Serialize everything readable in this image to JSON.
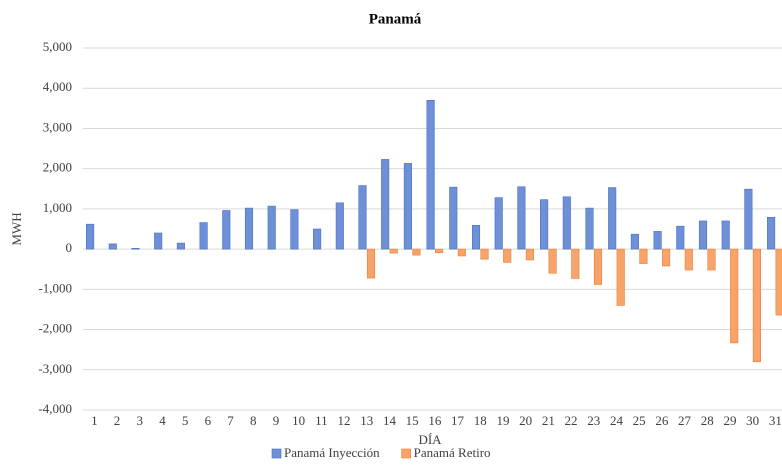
{
  "chart_data": {
    "type": "bar",
    "title": "Panamá",
    "x_label": "DÍA",
    "y_label": "MWH",
    "categories": [
      "1",
      "2",
      "3",
      "4",
      "5",
      "6",
      "7",
      "8",
      "9",
      "10",
      "11",
      "12",
      "13",
      "14",
      "15",
      "16",
      "17",
      "18",
      "19",
      "20",
      "21",
      "22",
      "23",
      "24",
      "25",
      "26",
      "27",
      "28",
      "29",
      "30",
      "31"
    ],
    "series": [
      {
        "name": "Panamá Inyección",
        "color": "#6f8fd6",
        "values": [
          620,
          130,
          20,
          400,
          150,
          660,
          960,
          1020,
          1070,
          980,
          500,
          1150,
          1580,
          2230,
          2130,
          3700,
          1540,
          590,
          1280,
          1550,
          1230,
          1300,
          1020,
          1530,
          370,
          440,
          570,
          700,
          700,
          1490,
          790
        ]
      },
      {
        "name": "Panamá Retiro",
        "color": "#f7a46c",
        "values": [
          0,
          0,
          0,
          0,
          0,
          0,
          0,
          0,
          0,
          0,
          0,
          0,
          -720,
          -100,
          -150,
          -90,
          -170,
          -250,
          -330,
          -270,
          -600,
          -730,
          -880,
          -1400,
          -360,
          -420,
          -520,
          -520,
          -2330,
          -2800,
          -1640
        ]
      }
    ],
    "ylim": [
      -4000,
      5000
    ],
    "yticks": [
      {
        "value": -4000,
        "label": "-4,000"
      },
      {
        "value": -3000,
        "label": "-3,000"
      },
      {
        "value": -2000,
        "label": "-2,000"
      },
      {
        "value": -1000,
        "label": "-1,000"
      },
      0,
      {
        "value": 1000,
        "label": "1,000"
      },
      {
        "value": 2000,
        "label": "2,000"
      },
      {
        "value": 3000,
        "label": "3,000"
      },
      {
        "value": 4000,
        "label": "4,000"
      },
      {
        "value": 5000,
        "label": "5,000"
      }
    ],
    "grid": true,
    "legend": "bottom"
  }
}
